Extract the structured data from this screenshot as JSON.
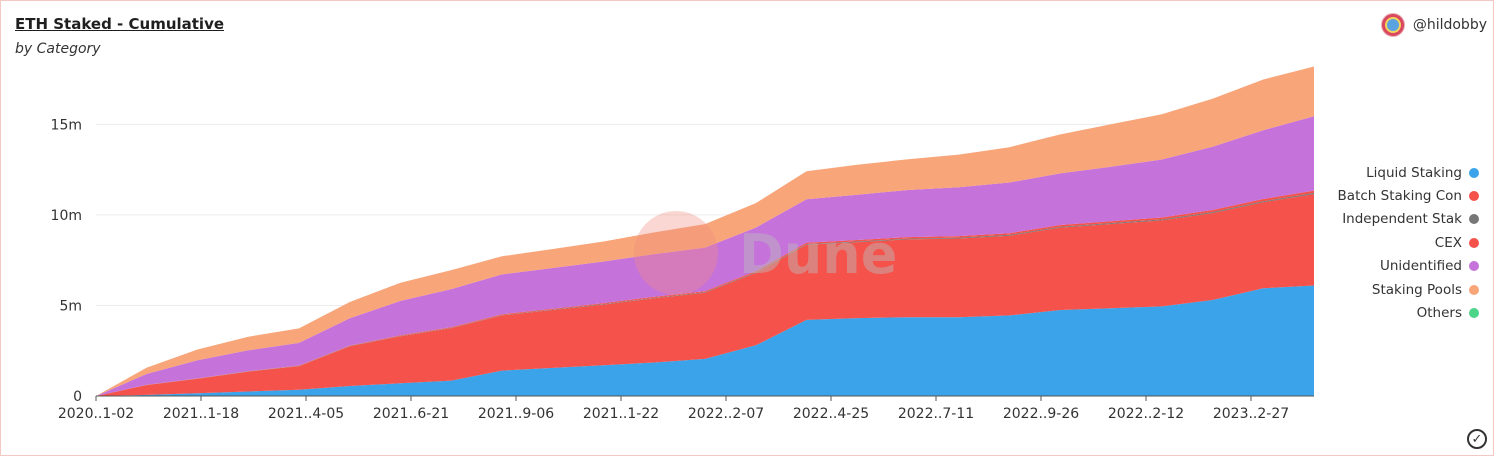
{
  "header": {
    "title": "ETH Staked - Cumulative",
    "subtitle": "by Category",
    "author": "@hildobby"
  },
  "watermark": "Dune",
  "icons": {
    "avatar": "avatar-icon",
    "status": "check-circle-icon"
  },
  "chart_data": {
    "type": "area",
    "stacked": true,
    "title": "ETH Staked - Cumulative",
    "subtitle": "by Category",
    "xlabel": "",
    "ylabel": "",
    "ylim": [
      0,
      18500000
    ],
    "y_ticks": [
      0,
      5000000,
      10000000,
      15000000
    ],
    "y_tick_labels": [
      "0",
      "5m",
      "10m",
      "15m"
    ],
    "x_tick_labels": [
      "2020..1-02",
      "2021..1-18",
      "2021..4-05",
      "2021..6-21",
      "2021..9-06",
      "2021..1-22",
      "2022..2-07",
      "2022..4-25",
      "2022..7-11",
      "2022..9-26",
      "2022..2-12",
      "2023..2-27"
    ],
    "x": [
      "2020-11-02",
      "2020-12-14",
      "2021-01-18",
      "2021-02-22",
      "2021-04-05",
      "2021-05-17",
      "2021-06-21",
      "2021-08-02",
      "2021-09-06",
      "2021-10-18",
      "2021-11-22",
      "2022-01-03",
      "2022-02-07",
      "2022-03-14",
      "2022-04-25",
      "2022-06-06",
      "2022-07-11",
      "2022-08-22",
      "2022-09-26",
      "2022-11-07",
      "2022-12-12",
      "2023-01-23",
      "2023-02-27",
      "2023-04-10",
      "2023-05-22"
    ],
    "legend_position": "right",
    "grid": true,
    "series": [
      {
        "name": "Liquid Staking",
        "color": "#3aa3e9",
        "values": [
          0,
          60000,
          150000,
          250000,
          350000,
          550000,
          700000,
          850000,
          1400000,
          1550000,
          1700000,
          1850000,
          2050000,
          2800000,
          4200000,
          4300000,
          4350000,
          4350000,
          4450000,
          4750000,
          4850000,
          4950000,
          5300000,
          5950000,
          6100000
        ]
      },
      {
        "name": "Batch Staking Con",
        "color": "#f5524b",
        "values": [
          0,
          550000,
          800000,
          1100000,
          1300000,
          2200000,
          2600000,
          2900000,
          3050000,
          3200000,
          3350000,
          3550000,
          3650000,
          4000000,
          4150000,
          4200000,
          4300000,
          4350000,
          4400000,
          4550000,
          4650000,
          4750000,
          4800000,
          4750000,
          5050000
        ]
      },
      {
        "name": "Independent Stak",
        "color": "#777777",
        "values": [
          0,
          5000,
          10000,
          10000,
          15000,
          15000,
          20000,
          20000,
          25000,
          25000,
          30000,
          30000,
          35000,
          35000,
          40000,
          40000,
          45000,
          45000,
          50000,
          50000,
          55000,
          55000,
          60000,
          60000,
          65000
        ]
      },
      {
        "name": "CEX",
        "color": "#f5524b",
        "values": [
          0,
          5000,
          10000,
          15000,
          20000,
          25000,
          30000,
          35000,
          40000,
          45000,
          50000,
          55000,
          60000,
          65000,
          70000,
          75000,
          80000,
          85000,
          90000,
          95000,
          100000,
          105000,
          110000,
          120000,
          130000
        ]
      },
      {
        "name": "Unidentified",
        "color": "#c672db",
        "values": [
          0,
          600000,
          1000000,
          1150000,
          1250000,
          1500000,
          1900000,
          2100000,
          2200000,
          2250000,
          2300000,
          2350000,
          2400000,
          2400000,
          2400000,
          2500000,
          2600000,
          2700000,
          2800000,
          2850000,
          3000000,
          3200000,
          3500000,
          3800000,
          4100000
        ]
      },
      {
        "name": "Staking Pools",
        "color": "#f7a579",
        "values": [
          0,
          350000,
          600000,
          750000,
          800000,
          900000,
          1000000,
          1050000,
          1000000,
          1050000,
          1100000,
          1200000,
          1300000,
          1350000,
          1550000,
          1650000,
          1700000,
          1800000,
          1950000,
          2150000,
          2350000,
          2500000,
          2650000,
          2800000,
          2750000
        ]
      },
      {
        "name": "Others",
        "color": "#4cd488",
        "values": [
          0,
          0,
          0,
          0,
          0,
          0,
          0,
          0,
          0,
          0,
          0,
          0,
          0,
          0,
          0,
          0,
          0,
          0,
          0,
          0,
          0,
          0,
          0,
          0,
          0
        ]
      }
    ]
  }
}
